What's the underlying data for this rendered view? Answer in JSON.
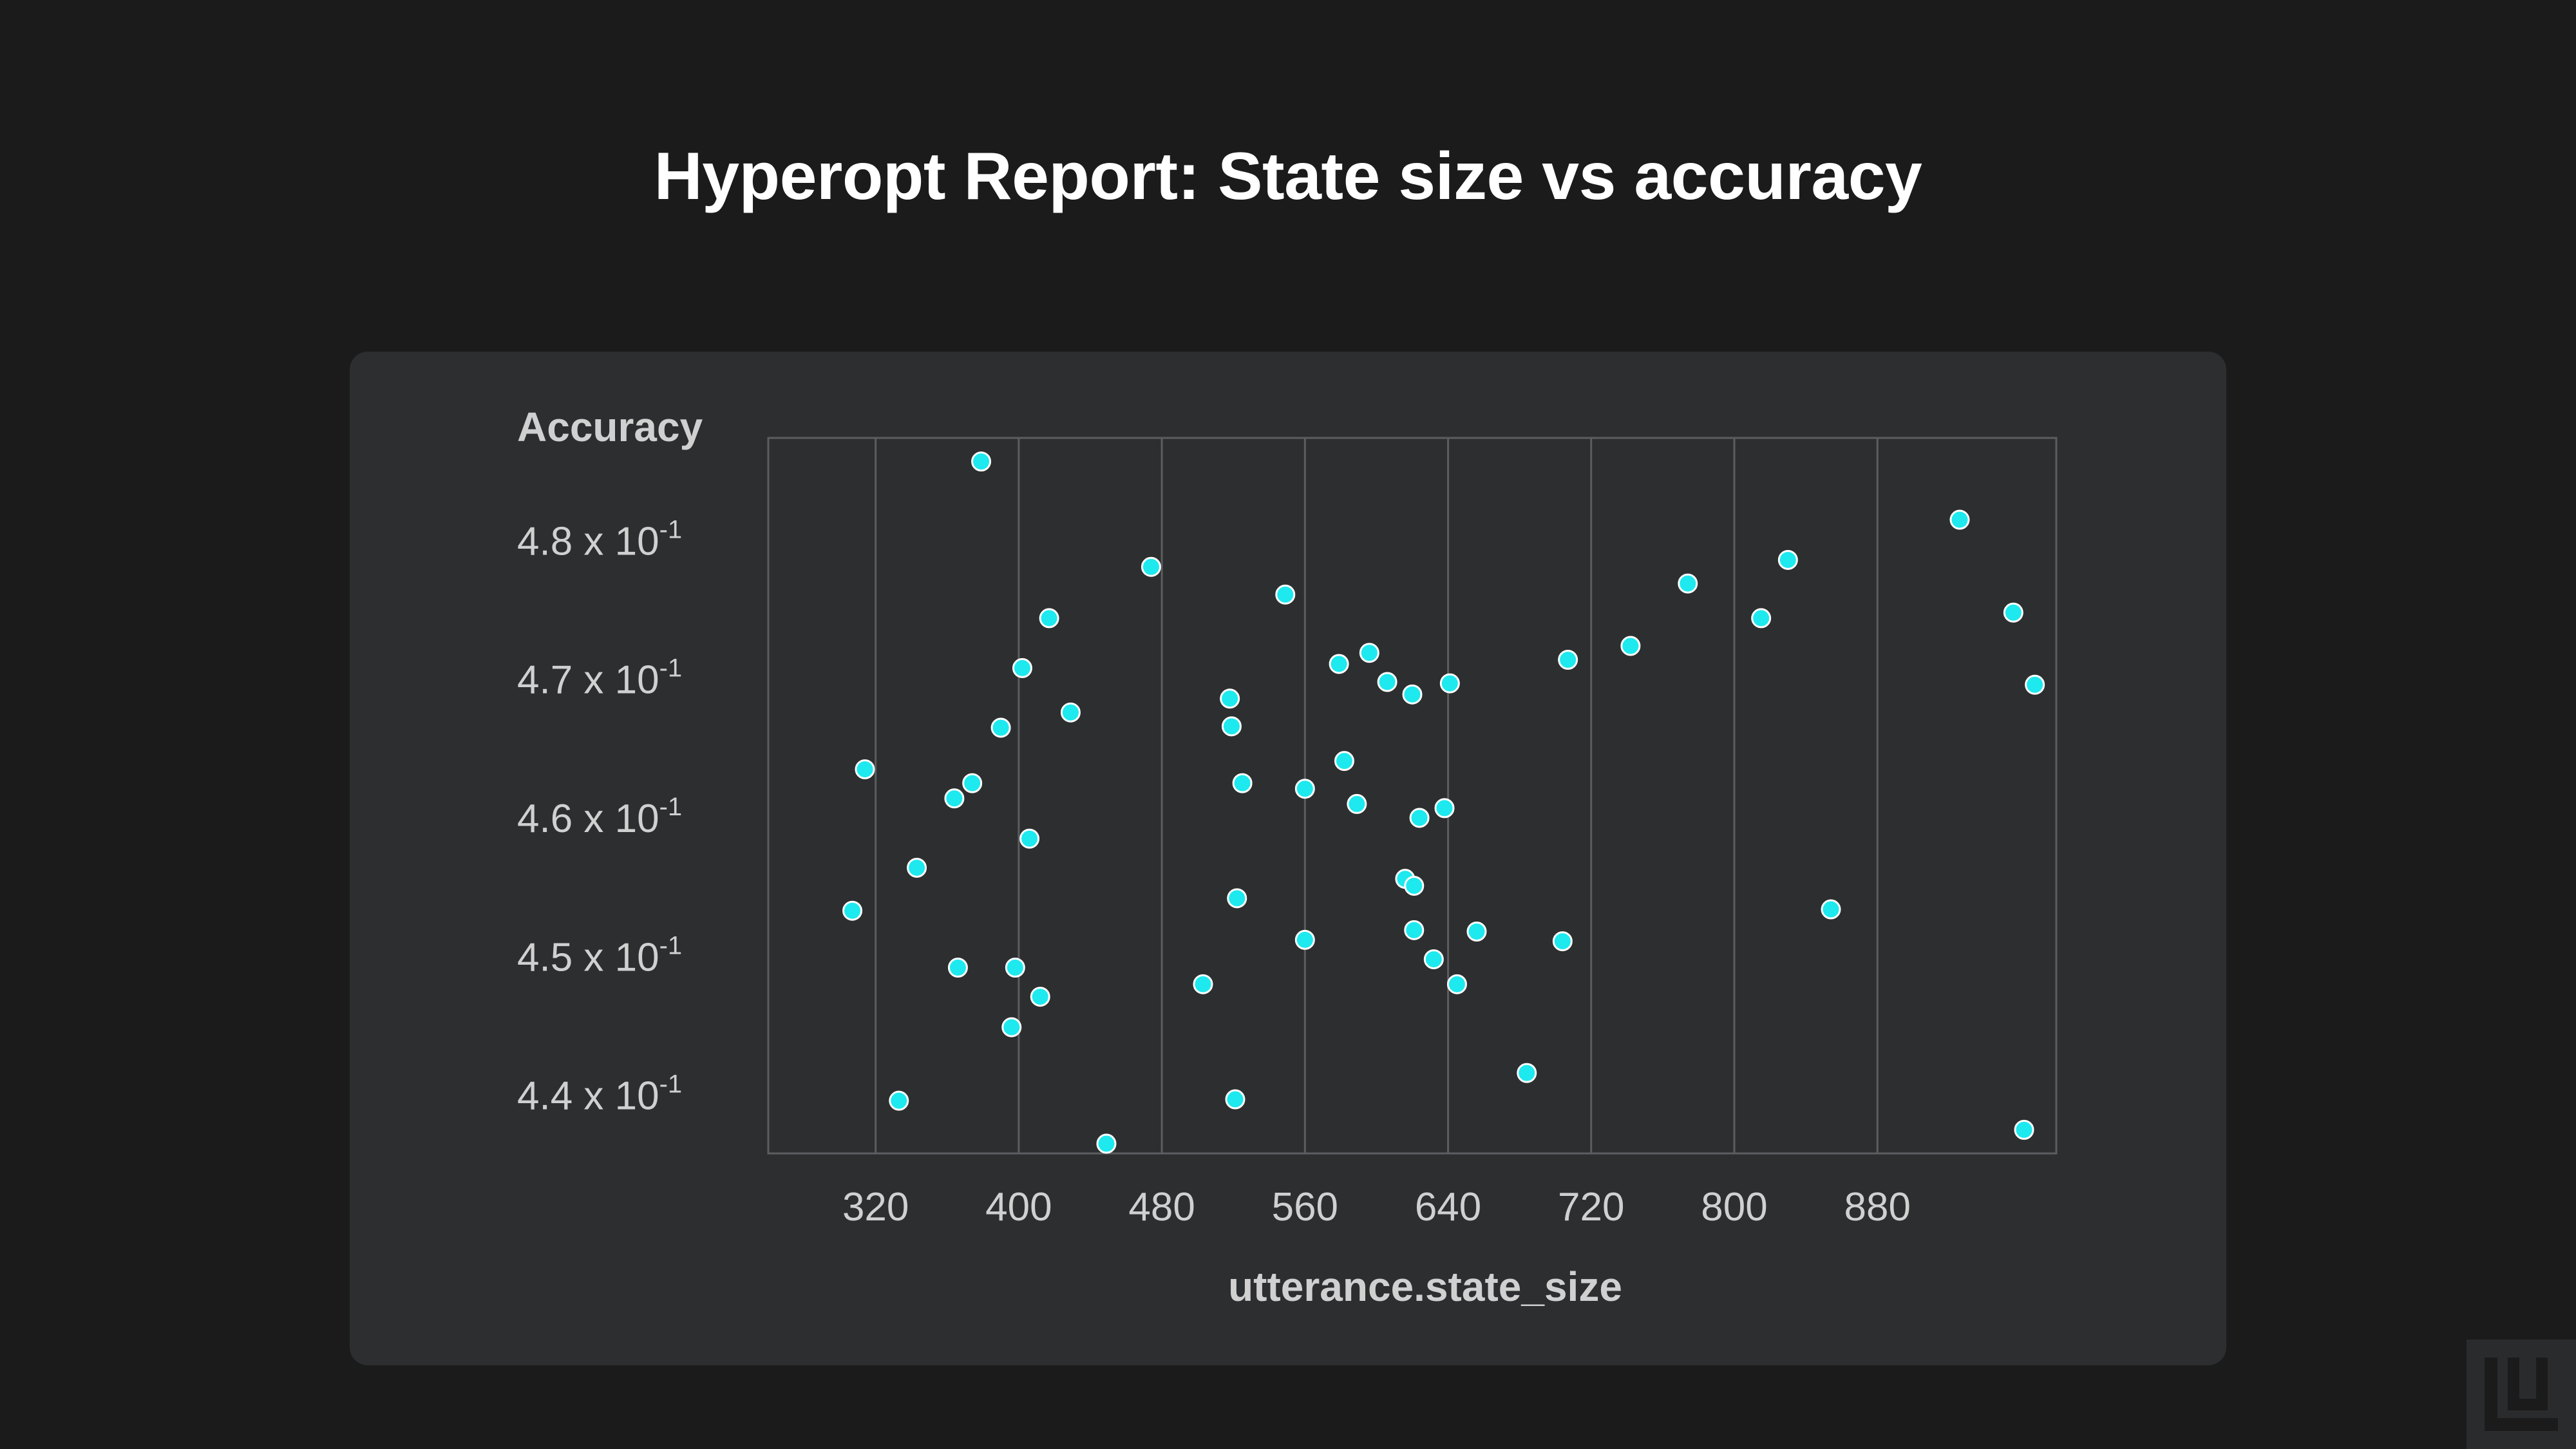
{
  "title": "Hyperopt Report: State size vs accuracy",
  "colors": {
    "background": "#1b1b1c",
    "panel": "#2d2e30",
    "point": "#1de9ee",
    "point_outline": "#ffffff",
    "grid": "#5c5d60",
    "axis_text": "#d0d0d0"
  },
  "chart_data": {
    "type": "scatter",
    "title": "Hyperopt Report: State size vs accuracy",
    "xlabel": "utterance.state_size",
    "ylabel": "Accuracy",
    "xlim": [
      260,
      980
    ],
    "ylim": [
      0.4358,
      0.4874
    ],
    "x_ticks": [
      320,
      400,
      480,
      560,
      640,
      720,
      800,
      880
    ],
    "x_tick_labels": [
      "320",
      "400",
      "480",
      "560",
      "640",
      "720",
      "800",
      "880"
    ],
    "y_ticks": [
      0.44,
      0.45,
      0.46,
      0.47,
      0.48
    ],
    "y_tick_labels": [
      {
        "base": "4.4 x 10",
        "exp": "-1"
      },
      {
        "base": "4.5 x 10",
        "exp": "-1"
      },
      {
        "base": "4.6 x 10",
        "exp": "-1"
      },
      {
        "base": "4.7 x 10",
        "exp": "-1"
      },
      {
        "base": "4.8 x 10",
        "exp": "-1"
      }
    ],
    "y_scale": "linear",
    "grid": "vertical-only",
    "points": [
      {
        "x": 314,
        "y": 0.4635
      },
      {
        "x": 307,
        "y": 0.4533
      },
      {
        "x": 333,
        "y": 0.4396
      },
      {
        "x": 343,
        "y": 0.4564
      },
      {
        "x": 364,
        "y": 0.4614
      },
      {
        "x": 366,
        "y": 0.4492
      },
      {
        "x": 374,
        "y": 0.4625
      },
      {
        "x": 379,
        "y": 0.4857
      },
      {
        "x": 390,
        "y": 0.4665
      },
      {
        "x": 396,
        "y": 0.4449
      },
      {
        "x": 398,
        "y": 0.4492
      },
      {
        "x": 402,
        "y": 0.4708
      },
      {
        "x": 406,
        "y": 0.4585
      },
      {
        "x": 412,
        "y": 0.4471
      },
      {
        "x": 417,
        "y": 0.4744
      },
      {
        "x": 429,
        "y": 0.4676
      },
      {
        "x": 449,
        "y": 0.4365
      },
      {
        "x": 474,
        "y": 0.4781
      },
      {
        "x": 503,
        "y": 0.448
      },
      {
        "x": 518,
        "y": 0.4686
      },
      {
        "x": 519,
        "y": 0.4666
      },
      {
        "x": 521,
        "y": 0.4397
      },
      {
        "x": 522,
        "y": 0.4542
      },
      {
        "x": 525,
        "y": 0.4625
      },
      {
        "x": 549,
        "y": 0.4761
      },
      {
        "x": 560,
        "y": 0.4621
      },
      {
        "x": 560,
        "y": 0.4512
      },
      {
        "x": 579,
        "y": 0.4711
      },
      {
        "x": 582,
        "y": 0.4641
      },
      {
        "x": 589,
        "y": 0.461
      },
      {
        "x": 596,
        "y": 0.4719
      },
      {
        "x": 606,
        "y": 0.4698
      },
      {
        "x": 616,
        "y": 0.4556
      },
      {
        "x": 620,
        "y": 0.4689
      },
      {
        "x": 621,
        "y": 0.4519
      },
      {
        "x": 621,
        "y": 0.4551
      },
      {
        "x": 624,
        "y": 0.46
      },
      {
        "x": 632,
        "y": 0.4498
      },
      {
        "x": 638,
        "y": 0.4607
      },
      {
        "x": 641,
        "y": 0.4697
      },
      {
        "x": 645,
        "y": 0.448
      },
      {
        "x": 656,
        "y": 0.4518
      },
      {
        "x": 684,
        "y": 0.4416
      },
      {
        "x": 704,
        "y": 0.4511
      },
      {
        "x": 707,
        "y": 0.4714
      },
      {
        "x": 742,
        "y": 0.4724
      },
      {
        "x": 774,
        "y": 0.4769
      },
      {
        "x": 815,
        "y": 0.4744
      },
      {
        "x": 830,
        "y": 0.4786
      },
      {
        "x": 854,
        "y": 0.4534
      },
      {
        "x": 926,
        "y": 0.4815
      },
      {
        "x": 956,
        "y": 0.4748
      },
      {
        "x": 962,
        "y": 0.4375
      },
      {
        "x": 968,
        "y": 0.4696
      }
    ]
  },
  "logo": {
    "name": "brand-logo"
  }
}
